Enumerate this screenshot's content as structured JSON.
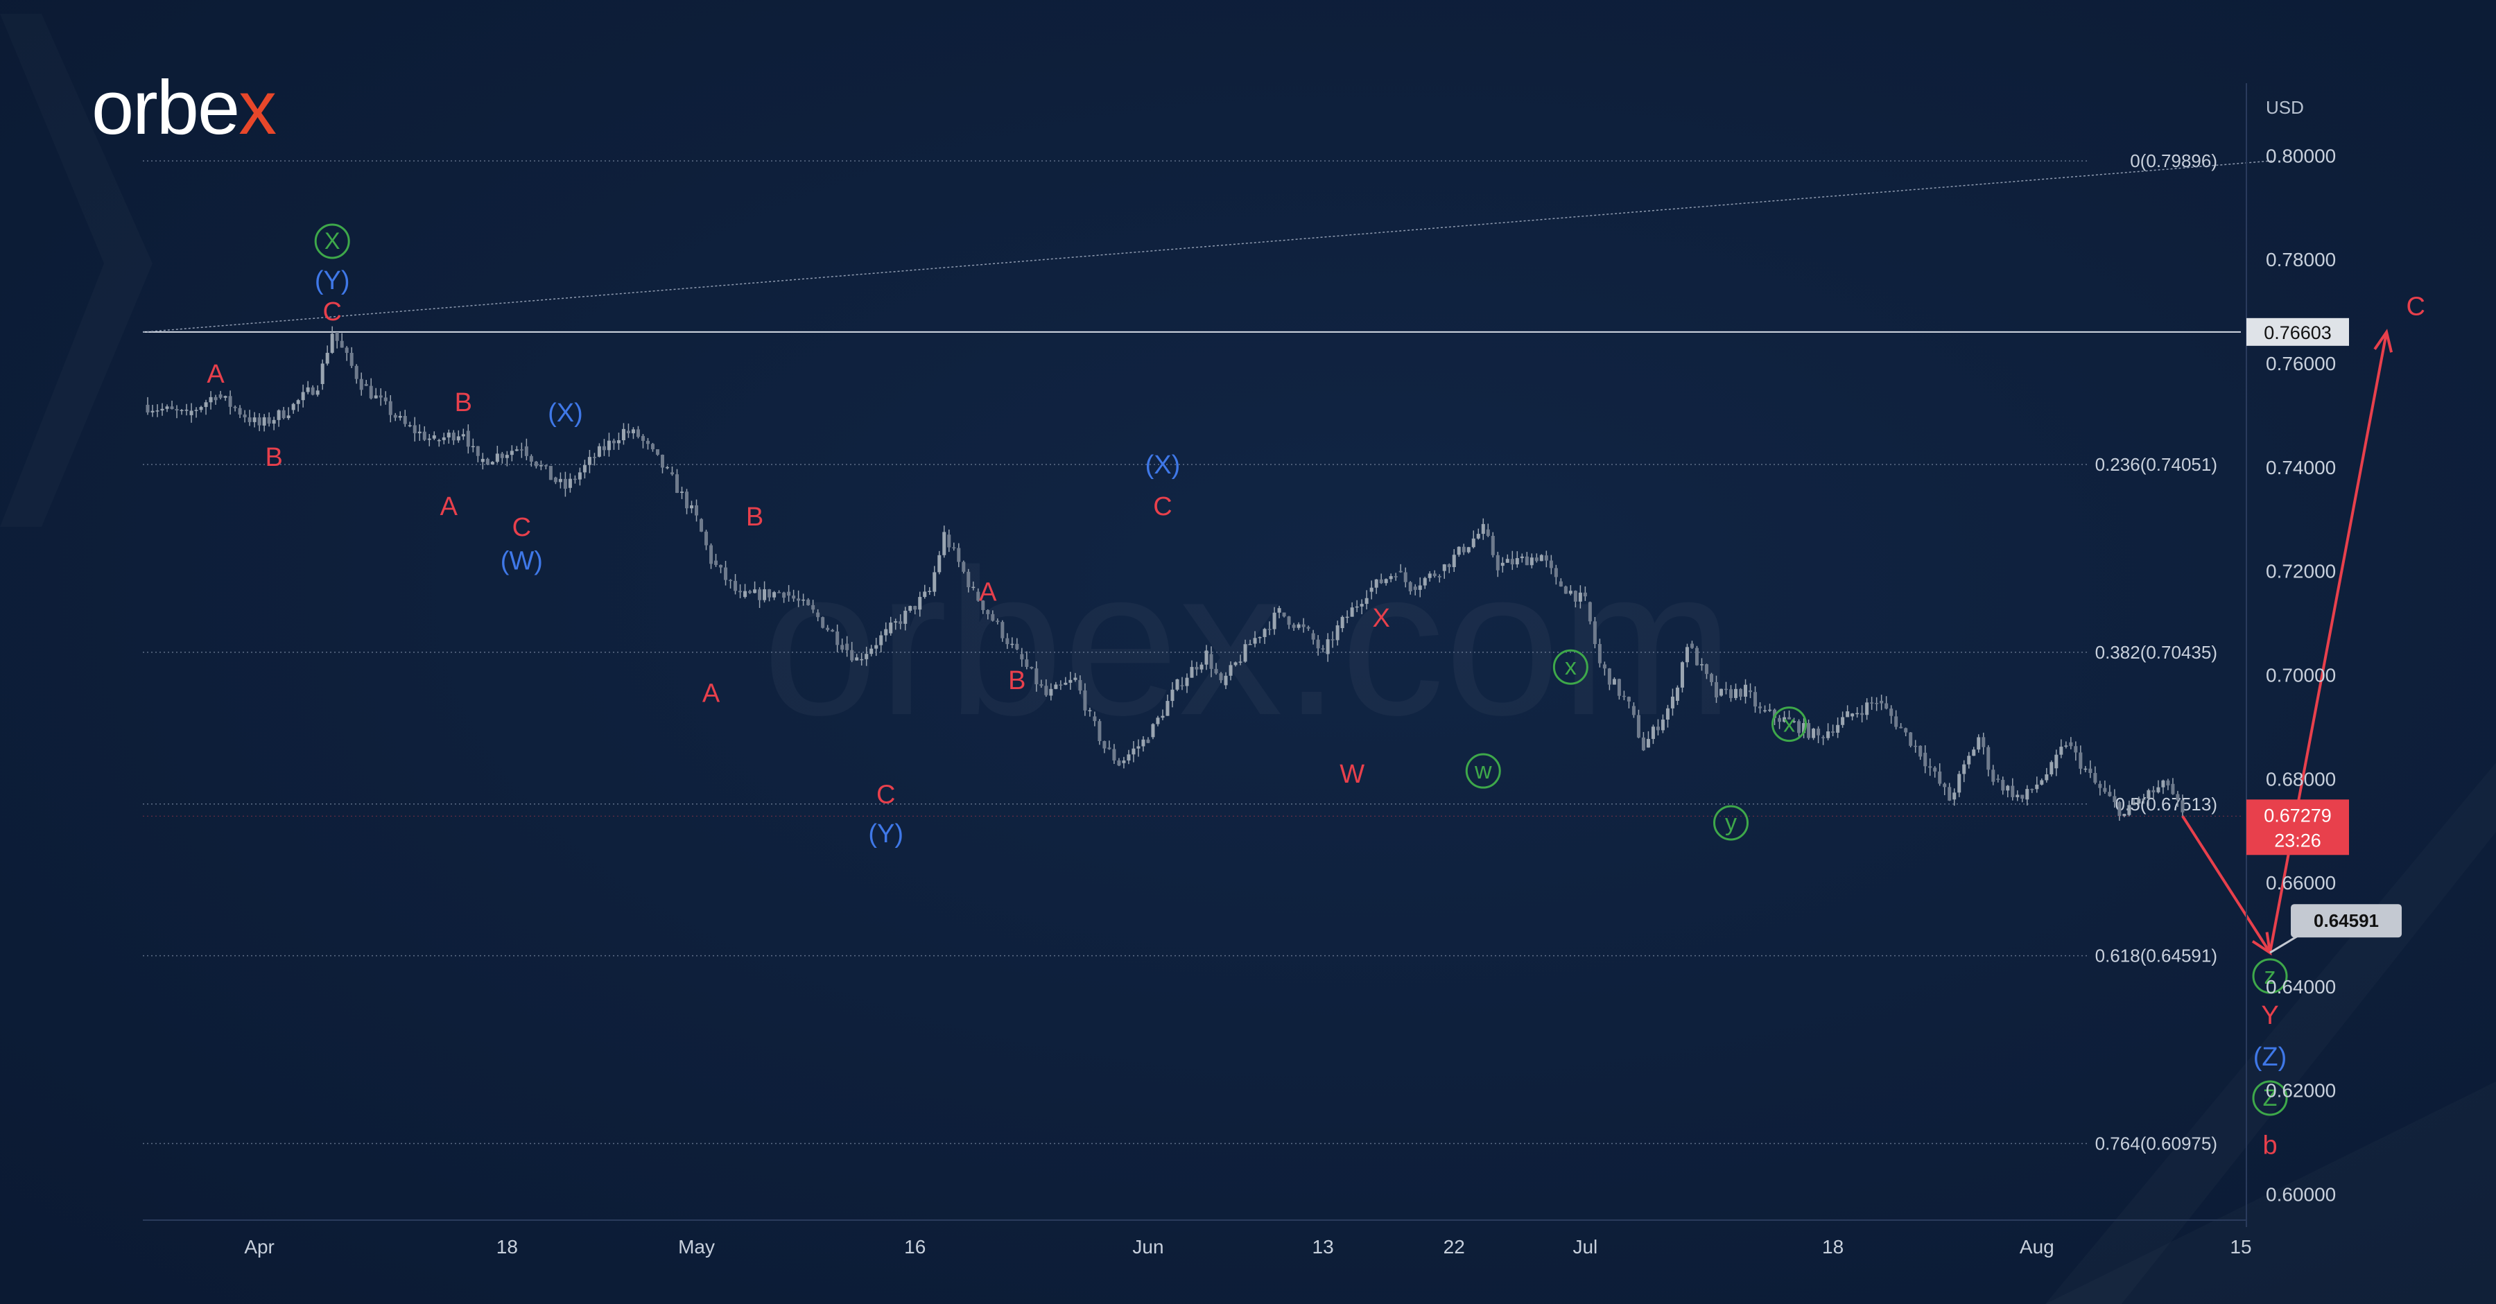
{
  "brand": {
    "name_main": "orbe",
    "name_accent": "x",
    "watermark": "orbex.com"
  },
  "axis": {
    "currency": "USD"
  },
  "chart_data": {
    "type": "candlestick",
    "instrument_quote": "USD",
    "ylim": [
      0.595,
      0.815
    ],
    "yticks": [
      0.6,
      0.62,
      0.64,
      0.66,
      0.68,
      0.7,
      0.72,
      0.74,
      0.76,
      0.78,
      0.8
    ],
    "ytick_labels": [
      "0.60000",
      "0.62000",
      "0.64000",
      "0.66000",
      "0.68000",
      "0.70000",
      "0.72000",
      "0.74000",
      "0.76000",
      "0.78000",
      "0.80000"
    ],
    "x_range": [
      "2022-03-24",
      "2022-08-15"
    ],
    "xticks": [
      {
        "date": "2022-04-01",
        "label": "Apr"
      },
      {
        "date": "2022-04-18",
        "label": "18"
      },
      {
        "date": "2022-05-01",
        "label": "May"
      },
      {
        "date": "2022-05-16",
        "label": "16"
      },
      {
        "date": "2022-06-01",
        "label": "Jun"
      },
      {
        "date": "2022-06-13",
        "label": "13"
      },
      {
        "date": "2022-06-22",
        "label": "22"
      },
      {
        "date": "2022-07-01",
        "label": "Jul"
      },
      {
        "date": "2022-07-18",
        "label": "18"
      },
      {
        "date": "2022-08-01",
        "label": "Aug"
      },
      {
        "date": "2022-08-15",
        "label": "15"
      }
    ],
    "price_path": [
      [
        "2022-03-24",
        0.752
      ],
      [
        "2022-03-27",
        0.75
      ],
      [
        "2022-03-29",
        0.754
      ],
      [
        "2022-04-01",
        0.748
      ],
      [
        "2022-04-03",
        0.751
      ],
      [
        "2022-04-05",
        0.756
      ],
      [
        "2022-04-06",
        0.766
      ],
      [
        "2022-04-08",
        0.756
      ],
      [
        "2022-04-11",
        0.748
      ],
      [
        "2022-04-13",
        0.745
      ],
      [
        "2022-04-15",
        0.747
      ],
      [
        "2022-04-16",
        0.741
      ],
      [
        "2022-04-19",
        0.744
      ],
      [
        "2022-04-21",
        0.738
      ],
      [
        "2022-04-22",
        0.736
      ],
      [
        "2022-04-24",
        0.742
      ],
      [
        "2022-04-26",
        0.747
      ],
      [
        "2022-04-27",
        0.746
      ],
      [
        "2022-04-29",
        0.739
      ],
      [
        "2022-05-01",
        0.73
      ],
      [
        "2022-05-02",
        0.722
      ],
      [
        "2022-05-04",
        0.715
      ],
      [
        "2022-05-07",
        0.716
      ],
      [
        "2022-05-09",
        0.712
      ],
      [
        "2022-05-11",
        0.706
      ],
      [
        "2022-05-12",
        0.703
      ],
      [
        "2022-05-14",
        0.708
      ],
      [
        "2022-05-17",
        0.716
      ],
      [
        "2022-05-18",
        0.727
      ],
      [
        "2022-05-20",
        0.716
      ],
      [
        "2022-05-23",
        0.704
      ],
      [
        "2022-05-25",
        0.696
      ],
      [
        "2022-05-27",
        0.699
      ],
      [
        "2022-05-28",
        0.692
      ],
      [
        "2022-05-29",
        0.686
      ],
      [
        "2022-05-30",
        0.683
      ],
      [
        "2022-06-01",
        0.688
      ],
      [
        "2022-06-03",
        0.698
      ],
      [
        "2022-06-05",
        0.704
      ],
      [
        "2022-06-06",
        0.698
      ],
      [
        "2022-06-08",
        0.706
      ],
      [
        "2022-06-10",
        0.712
      ],
      [
        "2022-06-12",
        0.708
      ],
      [
        "2022-06-13",
        0.704
      ],
      [
        "2022-06-14",
        0.709
      ],
      [
        "2022-06-16",
        0.716
      ],
      [
        "2022-06-18",
        0.72
      ],
      [
        "2022-06-19",
        0.717
      ],
      [
        "2022-06-21",
        0.72
      ],
      [
        "2022-06-24",
        0.728
      ],
      [
        "2022-06-25",
        0.721
      ],
      [
        "2022-06-28",
        0.723
      ],
      [
        "2022-06-29",
        0.718
      ],
      [
        "2022-07-01",
        0.714
      ],
      [
        "2022-07-02",
        0.702
      ],
      [
        "2022-07-04",
        0.694
      ],
      [
        "2022-07-05",
        0.686
      ],
      [
        "2022-07-07",
        0.695
      ],
      [
        "2022-07-08",
        0.706
      ],
      [
        "2022-07-10",
        0.696
      ],
      [
        "2022-07-12",
        0.697
      ],
      [
        "2022-07-13",
        0.693
      ],
      [
        "2022-07-15",
        0.691
      ],
      [
        "2022-07-17",
        0.688
      ],
      [
        "2022-07-19",
        0.692
      ],
      [
        "2022-07-21",
        0.695
      ],
      [
        "2022-07-22",
        0.692
      ],
      [
        "2022-07-24",
        0.685
      ],
      [
        "2022-07-26",
        0.676
      ],
      [
        "2022-07-28",
        0.688
      ],
      [
        "2022-07-29",
        0.68
      ],
      [
        "2022-07-31",
        0.676
      ],
      [
        "2022-08-02",
        0.682
      ],
      [
        "2022-08-03",
        0.687
      ],
      [
        "2022-08-05",
        0.679
      ],
      [
        "2022-08-07",
        0.673
      ],
      [
        "2022-08-08",
        0.676
      ],
      [
        "2022-08-10",
        0.679
      ],
      [
        "2022-08-11",
        0.6728
      ]
    ],
    "fib_levels": [
      {
        "label": "0(0.79896)",
        "value": 0.79896
      },
      {
        "label": "0.236(0.74051)",
        "value": 0.74051
      },
      {
        "label": "0.382(0.70435)",
        "value": 0.70435
      },
      {
        "label": "0.5(0.67513)",
        "value": 0.67513
      },
      {
        "label": "0.618(0.64591)",
        "value": 0.64591
      },
      {
        "label": "0.764(0.60975)",
        "value": 0.60975
      }
    ],
    "horizontal_line": {
      "value": 0.76603,
      "label": "0.76603"
    },
    "current_price": {
      "value": 0.67279,
      "label": "0.67279",
      "countdown": "23:26"
    },
    "target_box": {
      "value": 0.64591,
      "label": "0.64591"
    },
    "trend_line": {
      "from": [
        "2022-03-24",
        0.766
      ],
      "to": [
        "2022-08-11",
        0.799
      ]
    },
    "projection": [
      [
        "2022-08-11",
        0.6728
      ],
      [
        "2022-08-17",
        0.6465
      ],
      [
        "2022-08-25",
        0.766
      ]
    ],
    "wave_labels": [
      {
        "text": "A",
        "date": "2022-03-29",
        "price": 0.758,
        "style": "red"
      },
      {
        "text": "B",
        "date": "2022-04-02",
        "price": 0.742,
        "style": "red"
      },
      {
        "text": "C",
        "date": "2022-04-06",
        "price": 0.77,
        "style": "red"
      },
      {
        "text": "(Y)",
        "date": "2022-04-06",
        "price": 0.776,
        "style": "blue"
      },
      {
        "text": "X",
        "date": "2022-04-06",
        "price": 0.7835,
        "style": "green-circle"
      },
      {
        "text": "B",
        "date": "2022-04-15",
        "price": 0.7525,
        "style": "red"
      },
      {
        "text": "A",
        "date": "2022-04-14",
        "price": 0.7325,
        "style": "red"
      },
      {
        "text": "C",
        "date": "2022-04-19",
        "price": 0.7285,
        "style": "red"
      },
      {
        "text": "(W)",
        "date": "2022-04-19",
        "price": 0.722,
        "style": "blue"
      },
      {
        "text": "(X)",
        "date": "2022-04-22",
        "price": 0.7505,
        "style": "blue"
      },
      {
        "text": "B",
        "date": "2022-05-05",
        "price": 0.7305,
        "style": "red"
      },
      {
        "text": "A",
        "date": "2022-05-02",
        "price": 0.6965,
        "style": "red"
      },
      {
        "text": "C",
        "date": "2022-05-14",
        "price": 0.677,
        "style": "red"
      },
      {
        "text": "(Y)",
        "date": "2022-05-14",
        "price": 0.6695,
        "style": "blue"
      },
      {
        "text": "A",
        "date": "2022-05-21",
        "price": 0.716,
        "style": "red"
      },
      {
        "text": "B",
        "date": "2022-05-23",
        "price": 0.699,
        "style": "red"
      },
      {
        "text": "(X)",
        "date": "2022-06-02",
        "price": 0.7405,
        "style": "blue"
      },
      {
        "text": "C",
        "date": "2022-06-02",
        "price": 0.7325,
        "style": "red"
      },
      {
        "text": "X",
        "date": "2022-06-17",
        "price": 0.711,
        "style": "red"
      },
      {
        "text": "W",
        "date": "2022-06-15",
        "price": 0.681,
        "style": "red"
      },
      {
        "text": "w",
        "date": "2022-06-24",
        "price": 0.6815,
        "style": "green-circle"
      },
      {
        "text": "x",
        "date": "2022-06-30",
        "price": 0.7015,
        "style": "green-circle"
      },
      {
        "text": "y",
        "date": "2022-07-11",
        "price": 0.6715,
        "style": "green-circle"
      },
      {
        "text": "x",
        "date": "2022-07-15",
        "price": 0.6905,
        "style": "green-circle"
      },
      {
        "text": "z",
        "date": "2022-08-17",
        "price": 0.642,
        "style": "green-circle"
      },
      {
        "text": "Y",
        "date": "2022-08-17",
        "price": 0.6345,
        "style": "red"
      },
      {
        "text": "(Z)",
        "date": "2022-08-17",
        "price": 0.6265,
        "style": "blue"
      },
      {
        "text": "Z",
        "date": "2022-08-17",
        "price": 0.6185,
        "style": "green-circle"
      },
      {
        "text": "b",
        "date": "2022-08-17",
        "price": 0.6095,
        "style": "red"
      },
      {
        "text": "C",
        "date": "2022-08-27",
        "price": 0.771,
        "style": "red"
      }
    ]
  },
  "colors": {
    "background": "#0e1e3a",
    "candle": "#9aa5b1",
    "wave_red": "#e8404c",
    "wave_blue": "#3f78e8",
    "wave_green": "#3ea84a",
    "accent_red": "#e8404c"
  }
}
